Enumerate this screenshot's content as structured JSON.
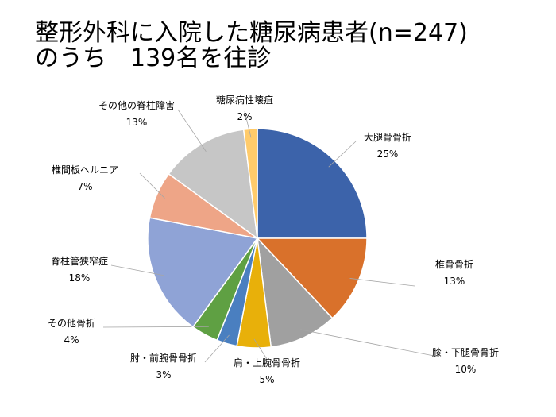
{
  "title": {
    "line1": "整形外科に入院した糖尿病患者(n=247)",
    "line2": "のうち　139名を往診"
  },
  "chart_data": {
    "type": "pie",
    "start_angle_deg": 0,
    "slices": [
      {
        "label": "大腿骨骨折",
        "value": 25,
        "display": "25%",
        "color": "#3c63aa"
      },
      {
        "label": "椎骨骨折",
        "value": 13,
        "display": "13%",
        "color": "#d9712b"
      },
      {
        "label": "膝・下腿骨骨折",
        "value": 10,
        "display": "10%",
        "color": "#a0a0a0"
      },
      {
        "label": "肩・上腕骨骨折",
        "value": 5,
        "display": "5%",
        "color": "#e8b00a"
      },
      {
        "label": "肘・前腕骨骨折",
        "value": 3,
        "display": "3%",
        "color": "#4a7fc0"
      },
      {
        "label": "その他骨折",
        "value": 4,
        "display": "4%",
        "color": "#5fa043"
      },
      {
        "label": "脊柱管狭窄症",
        "value": 18,
        "display": "18%",
        "color": "#8fa3d6"
      },
      {
        "label": "椎間板ヘルニア",
        "value": 7,
        "display": "7%",
        "color": "#eea587"
      },
      {
        "label": "その他の脊柱障害",
        "value": 13,
        "display": "13%",
        "color": "#c6c6c6"
      },
      {
        "label": "糖尿病性壊疽",
        "value": 2,
        "display": "2%",
        "color": "#ffcb6b"
      }
    ]
  }
}
